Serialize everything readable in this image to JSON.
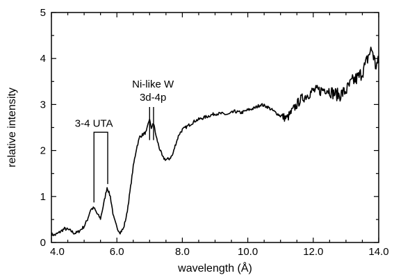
{
  "chart_data": {
    "type": "line",
    "title": "",
    "xlabel": "wavelength (Å)",
    "ylabel": "relative intensity",
    "xlim": [
      4.0,
      14.0
    ],
    "ylim": [
      0,
      5
    ],
    "grid": false,
    "x_ticks": [
      {
        "value": 4.0,
        "label": "4.0"
      },
      {
        "value": 6.0,
        "label": "6.0"
      },
      {
        "value": 8.0,
        "label": "8.0"
      },
      {
        "value": 10.0,
        "label": "10.0"
      },
      {
        "value": 12.0,
        "label": "12.0"
      },
      {
        "value": 14.0,
        "label": "14.0"
      }
    ],
    "y_ticks": [
      {
        "value": 0,
        "label": "0"
      },
      {
        "value": 1,
        "label": "1"
      },
      {
        "value": 2,
        "label": "2"
      },
      {
        "value": 3,
        "label": "3"
      },
      {
        "value": 4,
        "label": "4"
      },
      {
        "value": 5,
        "label": "5"
      }
    ],
    "series": [
      {
        "x": [
          4.0,
          4.1,
          4.2,
          4.3,
          4.4,
          4.5,
          4.6,
          4.7,
          4.8,
          4.9,
          5.0,
          5.1,
          5.2,
          5.3,
          5.4,
          5.5,
          5.6,
          5.7,
          5.8,
          5.9,
          6.0,
          6.1,
          6.2,
          6.3,
          6.4,
          6.5,
          6.6,
          6.7,
          6.8,
          6.9,
          7.0,
          7.05,
          7.1,
          7.15,
          7.2,
          7.3,
          7.4,
          7.5,
          7.6,
          7.7,
          7.8,
          7.9,
          8.0,
          8.2,
          8.4,
          8.6,
          8.8,
          9.0,
          9.2,
          9.4,
          9.6,
          9.8,
          10.0,
          10.2,
          10.4,
          10.6,
          10.8,
          11.0,
          11.2,
          11.4,
          11.6,
          11.8,
          12.0,
          12.2,
          12.4,
          12.6,
          12.8,
          13.0,
          13.2,
          13.4,
          13.6,
          13.7,
          13.8,
          13.9,
          14.0
        ],
        "y": [
          0.18,
          0.16,
          0.2,
          0.25,
          0.3,
          0.28,
          0.25,
          0.2,
          0.22,
          0.28,
          0.35,
          0.5,
          0.72,
          0.75,
          0.62,
          0.52,
          0.85,
          1.2,
          1.0,
          0.55,
          0.32,
          0.22,
          0.3,
          0.6,
          1.1,
          1.65,
          2.05,
          2.3,
          2.35,
          2.4,
          2.7,
          2.45,
          2.6,
          2.5,
          2.3,
          2.05,
          1.85,
          1.8,
          1.82,
          1.9,
          2.15,
          2.35,
          2.45,
          2.55,
          2.65,
          2.7,
          2.75,
          2.8,
          2.8,
          2.78,
          2.85,
          2.82,
          2.88,
          2.92,
          3.0,
          2.95,
          2.85,
          2.75,
          2.7,
          2.9,
          3.1,
          3.2,
          3.3,
          3.3,
          3.35,
          3.25,
          3.2,
          3.3,
          3.5,
          3.6,
          3.85,
          4.1,
          4.2,
          3.85,
          3.9
        ]
      }
    ],
    "annotations": [
      {
        "id": "uta",
        "text": "3-4 UTA",
        "x_left": 5.3,
        "x_right": 5.72,
        "y_left": 0.75,
        "y_right": 1.15,
        "y_top": 2.85
      },
      {
        "id": "ni",
        "text_line1": "Ni-like W",
        "text_line2": "3d-4p",
        "x_left": 7.0,
        "x_right": 7.12,
        "y_left": 2.15,
        "y_right": 2.05,
        "y_top": 3.55
      }
    ]
  }
}
